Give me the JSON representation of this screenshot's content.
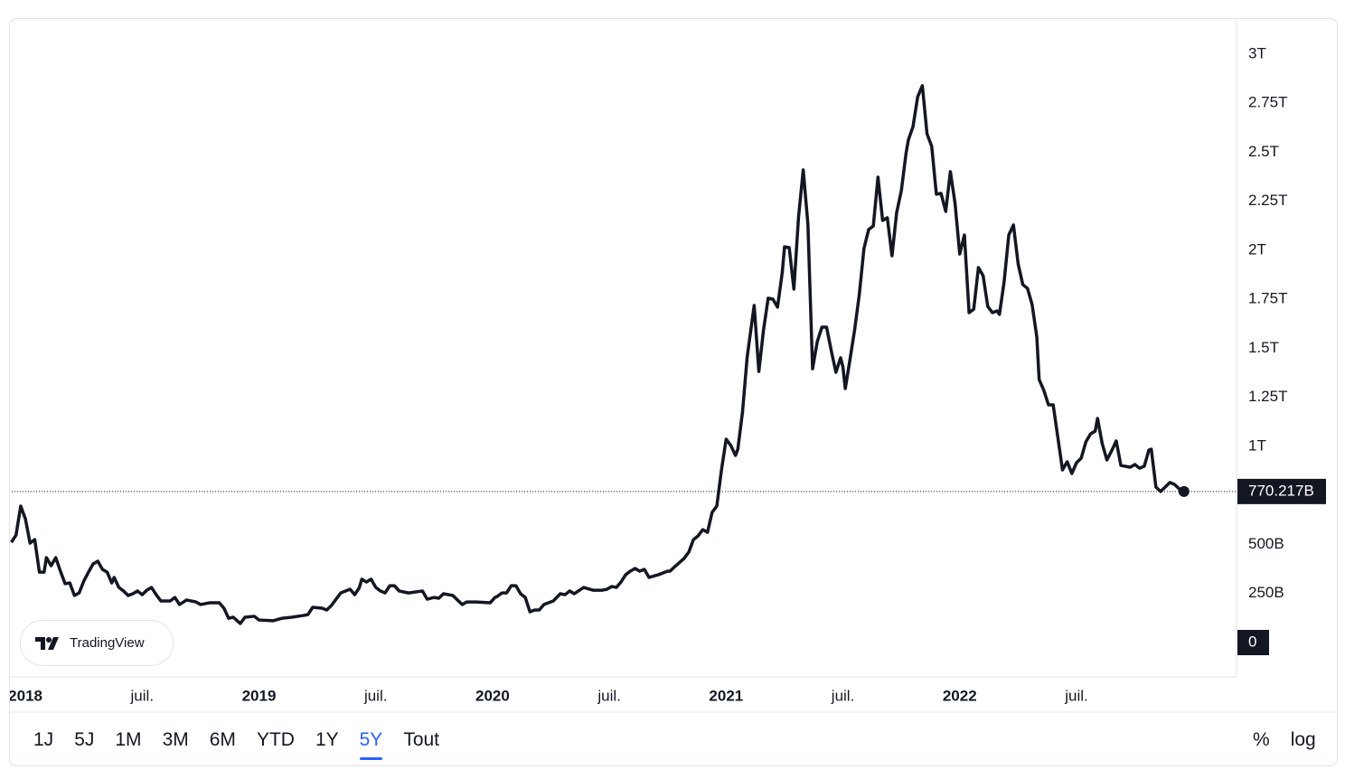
{
  "chart_data": {
    "type": "line",
    "color": "#131722",
    "x": [
      2017.94,
      2017.96,
      2017.98,
      2018.0,
      2018.02,
      2018.04,
      2018.06,
      2018.08,
      2018.09,
      2018.11,
      2018.13,
      2018.15,
      2018.17,
      2018.19,
      2018.21,
      2018.23,
      2018.25,
      2018.27,
      2018.29,
      2018.31,
      2018.33,
      2018.35,
      2018.37,
      2018.38,
      2018.4,
      2018.42,
      2018.44,
      2018.46,
      2018.48,
      2018.5,
      2018.52,
      2018.54,
      2018.56,
      2018.58,
      2018.62,
      2018.64,
      2018.66,
      2018.69,
      2018.73,
      2018.75,
      2018.79,
      2018.83,
      2018.85,
      2018.87,
      2018.89,
      2018.92,
      2018.94,
      2018.98,
      2019.0,
      2019.06,
      2019.1,
      2019.14,
      2019.19,
      2019.21,
      2019.23,
      2019.27,
      2019.29,
      2019.31,
      2019.33,
      2019.35,
      2019.39,
      2019.41,
      2019.43,
      2019.44,
      2019.46,
      2019.48,
      2019.5,
      2019.52,
      2019.54,
      2019.56,
      2019.58,
      2019.6,
      2019.64,
      2019.7,
      2019.72,
      2019.75,
      2019.77,
      2019.79,
      2019.83,
      2019.87,
      2019.89,
      2019.93,
      2019.99,
      2020.01,
      2020.02,
      2020.04,
      2020.06,
      2020.08,
      2020.1,
      2020.12,
      2020.14,
      2020.16,
      2020.18,
      2020.2,
      2020.22,
      2020.26,
      2020.29,
      2020.31,
      2020.33,
      2020.35,
      2020.39,
      2020.43,
      2020.47,
      2020.49,
      2020.51,
      2020.53,
      2020.55,
      2020.57,
      2020.59,
      2020.61,
      2020.63,
      2020.65,
      2020.67,
      2020.71,
      2020.75,
      2020.76,
      2020.78,
      2020.82,
      2020.84,
      2020.86,
      2020.88,
      2020.9,
      2020.92,
      2020.94,
      2020.96,
      2020.98,
      2021.0,
      2021.02,
      2021.04,
      2021.05,
      2021.07,
      2021.09,
      2021.12,
      2021.14,
      2021.16,
      2021.18,
      2021.2,
      2021.22,
      2021.24,
      2021.25,
      2021.27,
      2021.29,
      2021.31,
      2021.33,
      2021.35,
      2021.37,
      2021.39,
      2021.41,
      2021.43,
      2021.45,
      2021.47,
      2021.49,
      2021.5,
      2021.51,
      2021.53,
      2021.55,
      2021.57,
      2021.59,
      2021.61,
      2021.63,
      2021.65,
      2021.67,
      2021.69,
      2021.71,
      2021.73,
      2021.75,
      2021.77,
      2021.78,
      2021.8,
      2021.82,
      2021.84,
      2021.86,
      2021.88,
      2021.9,
      2021.92,
      2021.94,
      2021.96,
      2021.98,
      2022.0,
      2022.02,
      2022.04,
      2022.06,
      2022.08,
      2022.1,
      2022.12,
      2022.14,
      2022.16,
      2022.17,
      2022.19,
      2022.21,
      2022.23,
      2022.25,
      2022.27,
      2022.29,
      2022.31,
      2022.33,
      2022.34,
      2022.36,
      2022.38,
      2022.4,
      2022.42,
      2022.44,
      2022.46,
      2022.48,
      2022.5,
      2022.52,
      2022.54,
      2022.56,
      2022.58,
      2022.59,
      2022.61,
      2022.63,
      2022.65,
      2022.67,
      2022.69,
      2022.73,
      2022.75,
      2022.77,
      2022.79,
      2022.81,
      2022.82,
      2022.84,
      2022.86,
      2022.88,
      2022.9,
      2022.92,
      2022.94,
      2022.96
    ],
    "values": [
      511,
      548,
      696,
      631,
      507,
      525,
      359,
      359,
      433,
      392,
      433,
      364,
      300,
      304,
      240,
      253,
      313,
      359,
      401,
      415,
      373,
      359,
      304,
      332,
      281,
      263,
      240,
      249,
      263,
      244,
      267,
      281,
      244,
      212,
      212,
      230,
      194,
      217,
      207,
      194,
      203,
      203,
      175,
      124,
      129,
      97,
      129,
      134,
      115,
      111,
      124,
      129,
      138,
      143,
      180,
      175,
      166,
      189,
      221,
      253,
      272,
      244,
      281,
      323,
      309,
      323,
      281,
      263,
      253,
      290,
      290,
      263,
      253,
      263,
      221,
      230,
      226,
      249,
      240,
      194,
      207,
      207,
      203,
      230,
      235,
      253,
      253,
      290,
      290,
      249,
      230,
      157,
      166,
      166,
      194,
      212,
      249,
      244,
      263,
      249,
      281,
      267,
      267,
      272,
      286,
      281,
      309,
      346,
      364,
      378,
      364,
      373,
      332,
      346,
      364,
      364,
      387,
      429,
      461,
      525,
      544,
      576,
      562,
      664,
      696,
      880,
      1037,
      1005,
      954,
      986,
      1175,
      1456,
      1719,
      1382,
      1594,
      1756,
      1751,
      1710,
      1885,
      2018,
      2014,
      1802,
      2170,
      2410,
      2134,
      1396,
      1534,
      1608,
      1608,
      1488,
      1378,
      1452,
      1405,
      1295,
      1442,
      1594,
      1774,
      2009,
      2106,
      2124,
      2373,
      2152,
      2166,
      1972,
      2193,
      2304,
      2493,
      2562,
      2631,
      2783,
      2839,
      2594,
      2530,
      2286,
      2290,
      2198,
      2401,
      2239,
      1981,
      2078,
      1682,
      1700,
      1912,
      1871,
      1714,
      1682,
      1691,
      1673,
      1839,
      2078,
      2129,
      1931,
      1825,
      1806,
      1723,
      1558,
      1341,
      1286,
      1212,
      1212,
      1046,
      880,
      922,
      862,
      917,
      940,
      1023,
      1064,
      1078,
      1143,
      1014,
      931,
      977,
      1028,
      903,
      894,
      908,
      889,
      899,
      982,
      986,
      793,
      770,
      793,
      816,
      806,
      783,
      770.217
    ],
    "price_line": {
      "value": 770.217,
      "label": "770.217B"
    },
    "xlim": [
      2017.93,
      2023.185
    ],
    "xticks": [
      2018,
      {
        "value": 2018.5,
        "label": "juil."
      },
      2019,
      {
        "value": 2019.5,
        "label": "juil."
      },
      2020,
      {
        "value": 2020.5,
        "label": "juil."
      },
      2021,
      {
        "value": 2021.5,
        "label": "juil."
      },
      2022,
      {
        "value": 2022.5,
        "label": "juil."
      }
    ],
    "ylim": [
      -175,
      3184
    ],
    "yticks": [
      0,
      {
        "value": 250,
        "label": "250B"
      },
      {
        "value": 500,
        "label": "500B"
      },
      {
        "value": 1000,
        "label": "1T"
      },
      {
        "value": 1250,
        "label": "1.25T"
      },
      {
        "value": 1500,
        "label": "1.5T"
      },
      {
        "value": 1750,
        "label": "1.75T"
      },
      {
        "value": 2000,
        "label": "2T"
      },
      {
        "value": 2250,
        "label": "2.25T"
      },
      {
        "value": 2500,
        "label": "2.5T"
      },
      {
        "value": 2750,
        "label": "2.75T"
      },
      {
        "value": 3000,
        "label": "3T"
      }
    ],
    "grid": false
  },
  "watermark": "TradingView",
  "range_buttons": [
    "1J",
    "5J",
    "1M",
    "3M",
    "6M",
    "YTD",
    "1Y",
    "5Y",
    "Tout"
  ],
  "active_range": 7,
  "scale_buttons": [
    "%",
    "log"
  ]
}
